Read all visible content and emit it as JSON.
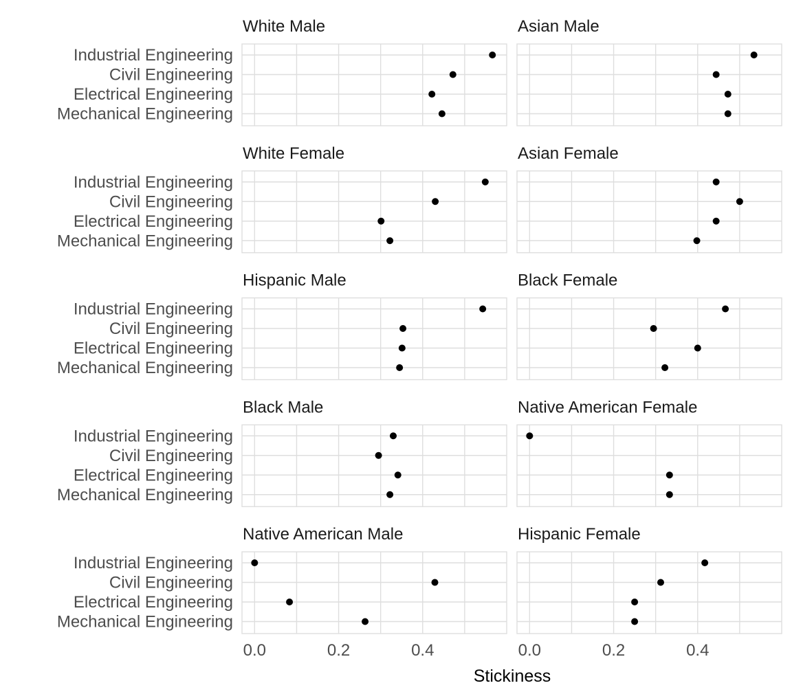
{
  "chart_data": {
    "type": "scatter",
    "xlabel": "Stickiness",
    "ylabel": "",
    "xlim": [
      -0.03,
      0.6
    ],
    "x_ticks": [
      "0.0",
      "0.2",
      "0.4"
    ],
    "grid": true,
    "categories": [
      "Industrial Engineering",
      "Civil Engineering",
      "Electrical Engineering",
      "Mechanical Engineering"
    ],
    "panels": [
      {
        "title": "White Male",
        "values": [
          0.566,
          0.472,
          0.422,
          0.446
        ]
      },
      {
        "title": "Asian Male",
        "values": [
          0.534,
          0.444,
          0.472,
          0.472
        ]
      },
      {
        "title": "White Female",
        "values": [
          0.549,
          0.43,
          0.301,
          0.322
        ]
      },
      {
        "title": "Asian Female",
        "values": [
          0.444,
          0.5,
          0.444,
          0.398
        ]
      },
      {
        "title": "Hispanic Male",
        "values": [
          0.543,
          0.353,
          0.351,
          0.345
        ]
      },
      {
        "title": "Black Female",
        "values": [
          0.466,
          0.295,
          0.4,
          0.322
        ]
      },
      {
        "title": "Black Male",
        "values": [
          0.33,
          0.295,
          0.341,
          0.322
        ]
      },
      {
        "title": "Native American Female",
        "values": [
          0.0,
          null,
          0.333,
          0.333
        ]
      },
      {
        "title": "Native American Male",
        "values": [
          0.0,
          0.429,
          0.083,
          0.263
        ]
      },
      {
        "title": "Hispanic Female",
        "values": [
          0.417,
          0.312,
          0.25,
          0.25
        ]
      }
    ]
  }
}
